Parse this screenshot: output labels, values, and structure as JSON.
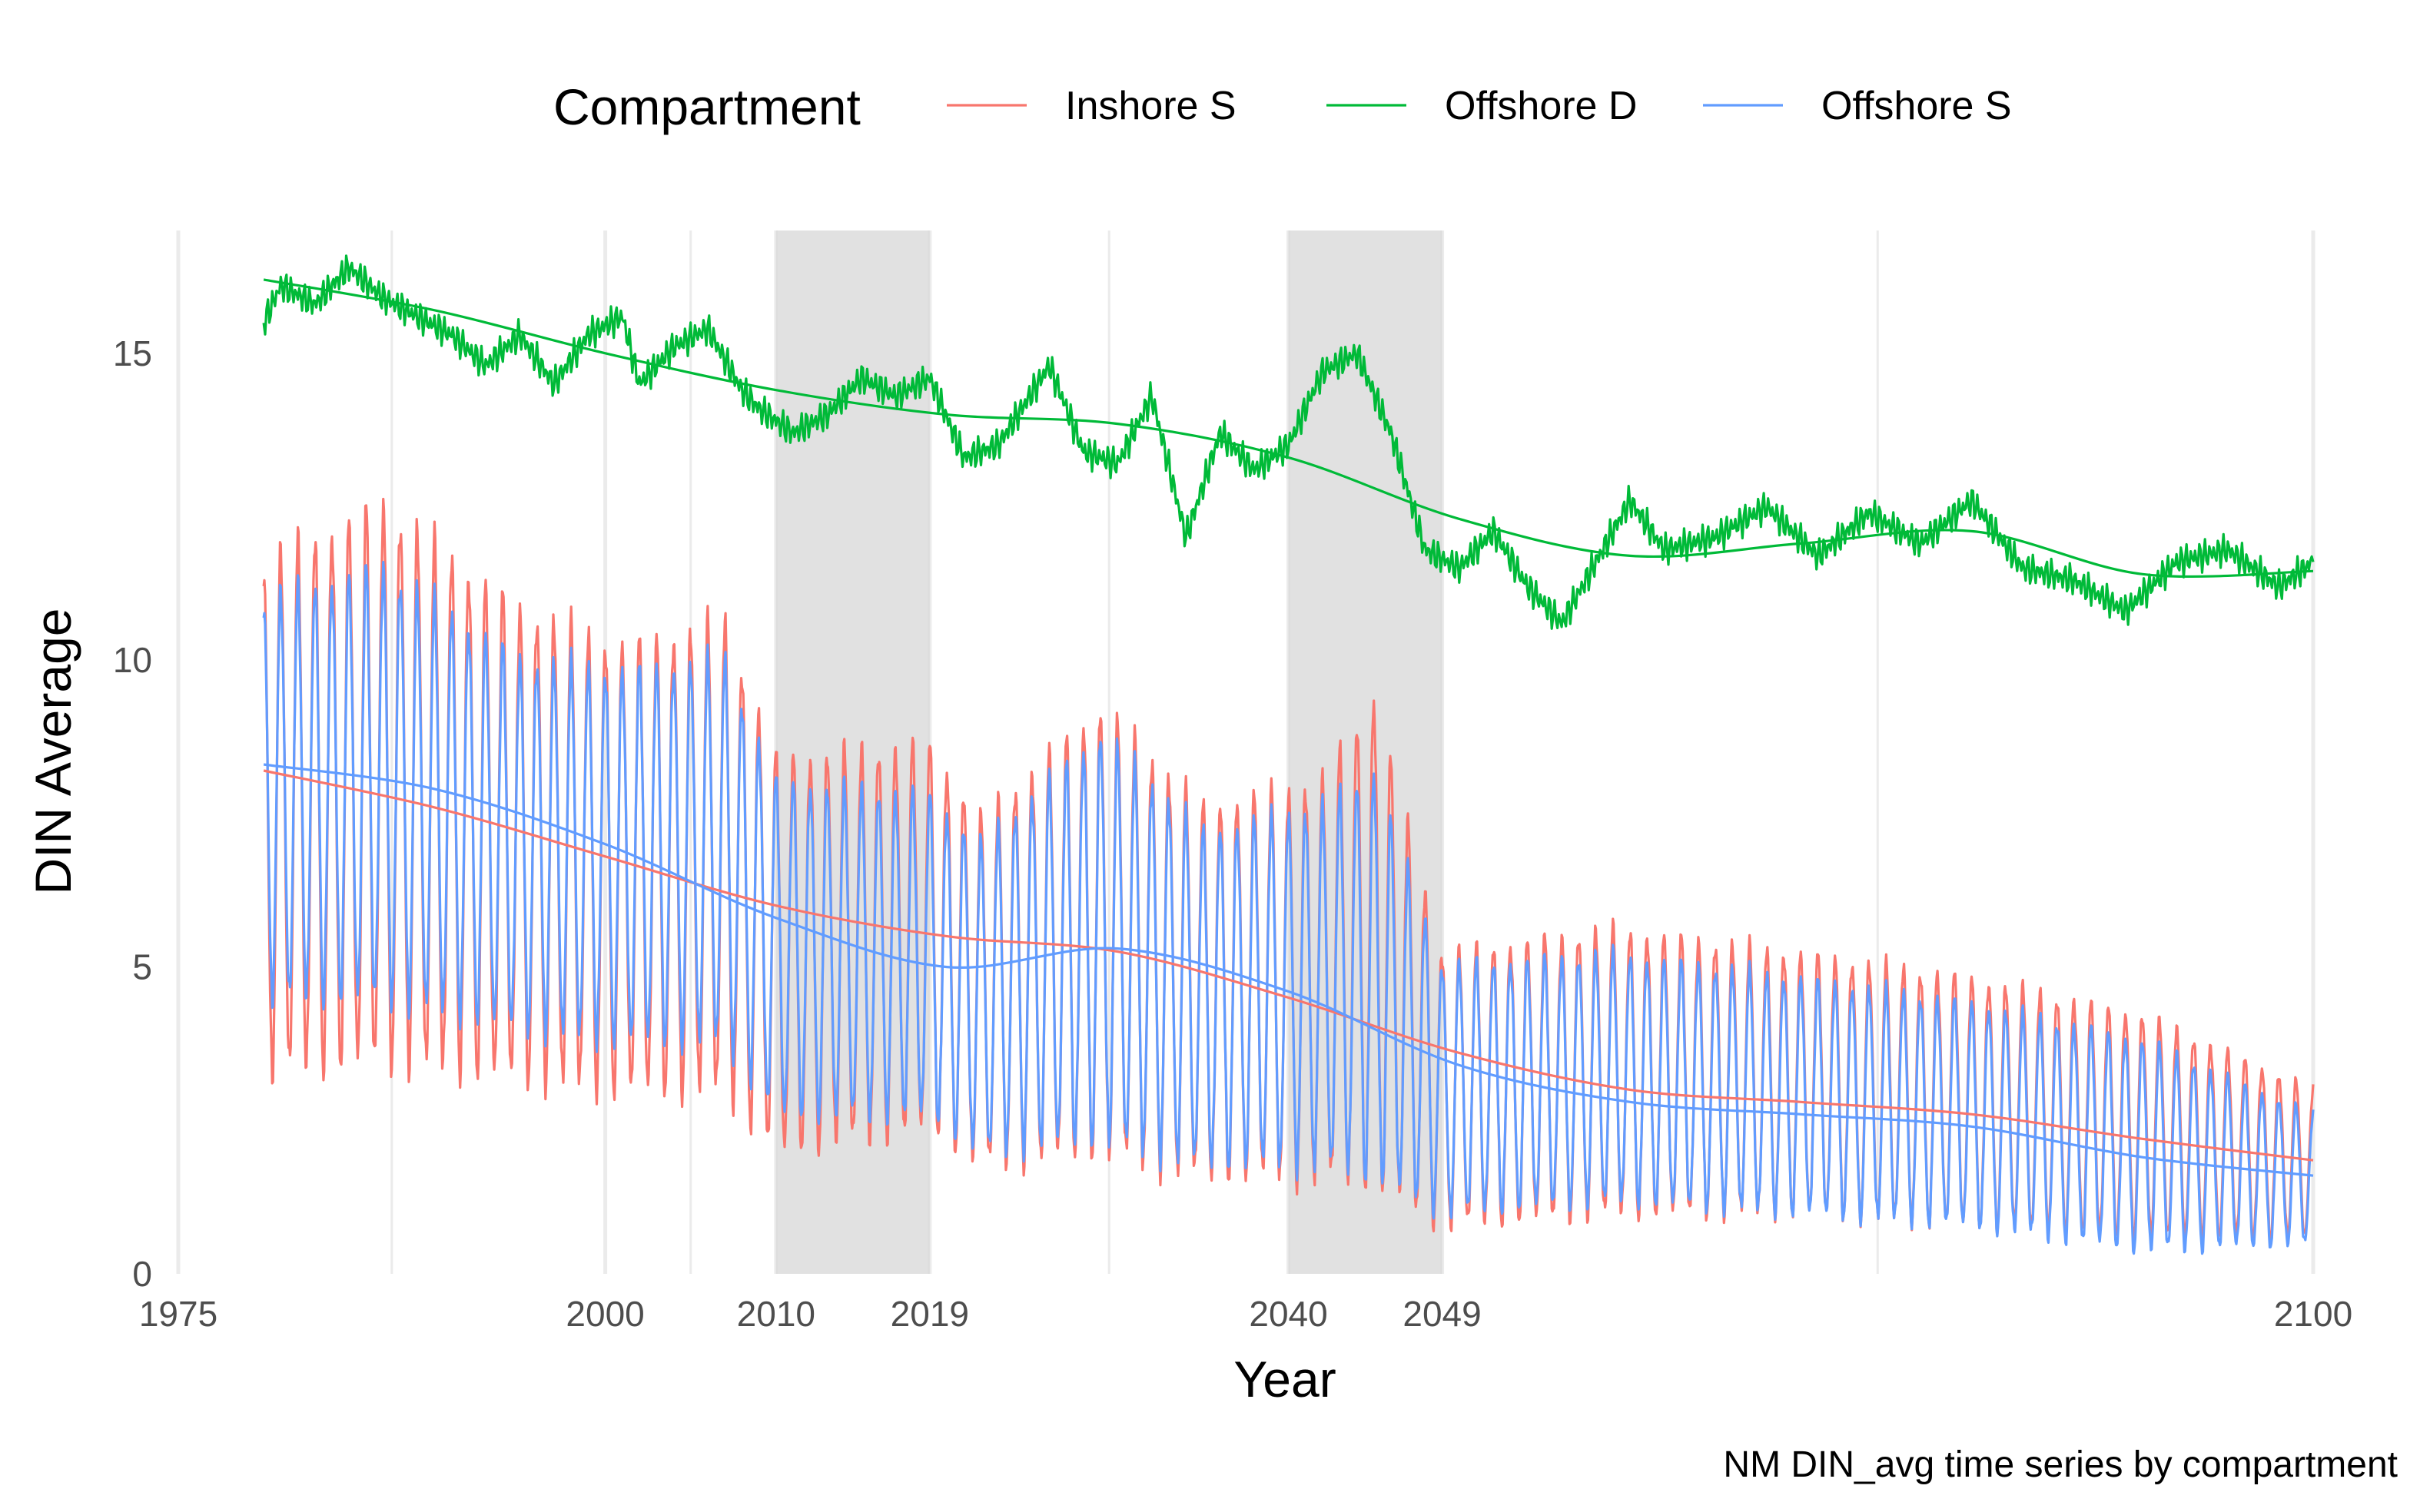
{
  "chart_data": {
    "type": "line",
    "title": "",
    "caption": "NM DIN_avg time series by compartment",
    "xlabel": "Year",
    "ylabel": "DIN Average",
    "xlim": [
      1975,
      2100
    ],
    "ylim": [
      0,
      17
    ],
    "x_ticks": [
      1975,
      2000,
      2010,
      2019,
      2040,
      2049,
      2100
    ],
    "y_ticks": [
      0,
      5,
      10,
      15
    ],
    "minor_gridlines_x": [
      1987.5,
      2005,
      2029.5,
      2074.5
    ],
    "shaded_periods": [
      [
        2010,
        2019
      ],
      [
        2040,
        2049
      ]
    ],
    "grid": true,
    "legend": {
      "title": "Compartment",
      "position": "top"
    },
    "series": [
      {
        "name": "Inshore S",
        "color": "#F8766D",
        "raw_seasonal_envelope": [
          {
            "year": 1980,
            "peak": 11.6,
            "trough": 3.3
          },
          {
            "year": 1987,
            "peak": 12.5,
            "trough": 3.5
          },
          {
            "year": 1995,
            "peak": 10.8,
            "trough": 3.2
          },
          {
            "year": 2001,
            "peak": 10.2,
            "trough": 3.0
          },
          {
            "year": 2007,
            "peak": 10.6,
            "trough": 3.0
          },
          {
            "year": 2010,
            "peak": 8.4,
            "trough": 2.0
          },
          {
            "year": 2019,
            "peak": 8.6,
            "trough": 2.4
          },
          {
            "year": 2022,
            "peak": 7.4,
            "trough": 1.8
          },
          {
            "year": 2029,
            "peak": 9.2,
            "trough": 2.0
          },
          {
            "year": 2035,
            "peak": 7.6,
            "trough": 1.6
          },
          {
            "year": 2042,
            "peak": 8.0,
            "trough": 1.6
          },
          {
            "year": 2045,
            "peak": 9.4,
            "trough": 1.5
          },
          {
            "year": 2049,
            "peak": 5.2,
            "trough": 0.8
          },
          {
            "year": 2059,
            "peak": 5.6,
            "trough": 1.0
          },
          {
            "year": 2070,
            "peak": 5.2,
            "trough": 1.0
          },
          {
            "year": 2080,
            "peak": 4.8,
            "trough": 0.8
          },
          {
            "year": 2090,
            "peak": 4.2,
            "trough": 0.6
          },
          {
            "year": 2100,
            "peak": 3.0,
            "trough": 0.6
          }
        ],
        "smooth": [
          {
            "x": 1980,
            "y": 8.2
          },
          {
            "x": 1990,
            "y": 7.6
          },
          {
            "x": 2000,
            "y": 6.8
          },
          {
            "x": 2010,
            "y": 6.0
          },
          {
            "x": 2020,
            "y": 5.5
          },
          {
            "x": 2030,
            "y": 5.25
          },
          {
            "x": 2040,
            "y": 4.5
          },
          {
            "x": 2050,
            "y": 3.6
          },
          {
            "x": 2060,
            "y": 3.0
          },
          {
            "x": 2070,
            "y": 2.8
          },
          {
            "x": 2080,
            "y": 2.6
          },
          {
            "x": 2090,
            "y": 2.2
          },
          {
            "x": 2100,
            "y": 1.85
          }
        ]
      },
      {
        "name": "Offshore D",
        "color": "#00BA38",
        "raw": [
          {
            "x": 1980,
            "y": 15.5
          },
          {
            "x": 1981,
            "y": 16.1
          },
          {
            "x": 1983,
            "y": 15.8
          },
          {
            "x": 1985,
            "y": 16.4
          },
          {
            "x": 1987,
            "y": 15.9
          },
          {
            "x": 1989,
            "y": 15.6
          },
          {
            "x": 1991,
            "y": 15.3
          },
          {
            "x": 1993,
            "y": 14.8
          },
          {
            "x": 1995,
            "y": 15.3
          },
          {
            "x": 1997,
            "y": 14.5
          },
          {
            "x": 1999,
            "y": 15.3
          },
          {
            "x": 2001,
            "y": 15.6
          },
          {
            "x": 2002,
            "y": 14.5
          },
          {
            "x": 2004,
            "y": 15.1
          },
          {
            "x": 2006,
            "y": 15.4
          },
          {
            "x": 2008,
            "y": 14.4
          },
          {
            "x": 2009,
            "y": 14.1
          },
          {
            "x": 2011,
            "y": 13.7
          },
          {
            "x": 2013,
            "y": 14.0
          },
          {
            "x": 2015,
            "y": 14.6
          },
          {
            "x": 2017,
            "y": 14.3
          },
          {
            "x": 2019,
            "y": 14.6
          },
          {
            "x": 2021,
            "y": 13.3
          },
          {
            "x": 2023,
            "y": 13.5
          },
          {
            "x": 2026,
            "y": 14.8
          },
          {
            "x": 2028,
            "y": 13.4
          },
          {
            "x": 2030,
            "y": 13.2
          },
          {
            "x": 2032,
            "y": 14.3
          },
          {
            "x": 2034,
            "y": 12.0
          },
          {
            "x": 2036,
            "y": 13.7
          },
          {
            "x": 2038,
            "y": 13.1
          },
          {
            "x": 2040,
            "y": 13.5
          },
          {
            "x": 2042,
            "y": 14.7
          },
          {
            "x": 2044,
            "y": 15.0
          },
          {
            "x": 2046,
            "y": 13.7
          },
          {
            "x": 2048,
            "y": 11.8
          },
          {
            "x": 2050,
            "y": 11.5
          },
          {
            "x": 2052,
            "y": 12.1
          },
          {
            "x": 2054,
            "y": 11.2
          },
          {
            "x": 2056,
            "y": 10.6
          },
          {
            "x": 2058,
            "y": 11.6
          },
          {
            "x": 2060,
            "y": 12.6
          },
          {
            "x": 2062,
            "y": 11.8
          },
          {
            "x": 2065,
            "y": 12.0
          },
          {
            "x": 2068,
            "y": 12.5
          },
          {
            "x": 2071,
            "y": 11.7
          },
          {
            "x": 2074,
            "y": 12.4
          },
          {
            "x": 2077,
            "y": 11.9
          },
          {
            "x": 2080,
            "y": 12.6
          },
          {
            "x": 2083,
            "y": 11.5
          },
          {
            "x": 2086,
            "y": 11.3
          },
          {
            "x": 2089,
            "y": 10.8
          },
          {
            "x": 2092,
            "y": 11.6
          },
          {
            "x": 2095,
            "y": 11.8
          },
          {
            "x": 2098,
            "y": 11.2
          },
          {
            "x": 2100,
            "y": 11.6
          }
        ],
        "smooth": [
          {
            "x": 1980,
            "y": 16.2
          },
          {
            "x": 1990,
            "y": 15.7
          },
          {
            "x": 2000,
            "y": 15.0
          },
          {
            "x": 2010,
            "y": 14.4
          },
          {
            "x": 2020,
            "y": 14.0
          },
          {
            "x": 2030,
            "y": 13.85
          },
          {
            "x": 2040,
            "y": 13.3
          },
          {
            "x": 2050,
            "y": 12.3
          },
          {
            "x": 2060,
            "y": 11.7
          },
          {
            "x": 2070,
            "y": 11.9
          },
          {
            "x": 2080,
            "y": 12.1
          },
          {
            "x": 2090,
            "y": 11.4
          },
          {
            "x": 2100,
            "y": 11.45
          }
        ]
      },
      {
        "name": "Offshore S",
        "color": "#619CFF",
        "raw_seasonal_envelope": [
          {
            "year": 1980,
            "peak": 11.0,
            "trough": 4.5
          },
          {
            "year": 1987,
            "peak": 11.5,
            "trough": 4.5
          },
          {
            "year": 1995,
            "peak": 10.0,
            "trough": 4.0
          },
          {
            "year": 2001,
            "peak": 9.8,
            "trough": 3.8
          },
          {
            "year": 2007,
            "peak": 10.0,
            "trough": 3.8
          },
          {
            "year": 2010,
            "peak": 8.0,
            "trough": 2.6
          },
          {
            "year": 2019,
            "peak": 7.8,
            "trough": 2.6
          },
          {
            "year": 2022,
            "peak": 7.0,
            "trough": 2.0
          },
          {
            "year": 2029,
            "peak": 8.8,
            "trough": 2.2
          },
          {
            "year": 2035,
            "peak": 7.2,
            "trough": 1.8
          },
          {
            "year": 2042,
            "peak": 7.6,
            "trough": 1.8
          },
          {
            "year": 2045,
            "peak": 8.2,
            "trough": 1.6
          },
          {
            "year": 2049,
            "peak": 5.0,
            "trough": 1.0
          },
          {
            "year": 2059,
            "peak": 5.2,
            "trough": 1.2
          },
          {
            "year": 2070,
            "peak": 4.8,
            "trough": 1.0
          },
          {
            "year": 2080,
            "peak": 4.4,
            "trough": 0.8
          },
          {
            "year": 2090,
            "peak": 3.8,
            "trough": 0.4
          },
          {
            "year": 2100,
            "peak": 2.6,
            "trough": 0.5
          }
        ],
        "smooth": [
          {
            "x": 1980,
            "y": 8.3
          },
          {
            "x": 1990,
            "y": 7.9
          },
          {
            "x": 2000,
            "y": 7.0
          },
          {
            "x": 2010,
            "y": 5.8
          },
          {
            "x": 2020,
            "y": 5.0
          },
          {
            "x": 2030,
            "y": 5.3
          },
          {
            "x": 2040,
            "y": 4.6
          },
          {
            "x": 2050,
            "y": 3.4
          },
          {
            "x": 2060,
            "y": 2.8
          },
          {
            "x": 2070,
            "y": 2.6
          },
          {
            "x": 2080,
            "y": 2.4
          },
          {
            "x": 2090,
            "y": 1.9
          },
          {
            "x": 2100,
            "y": 1.6
          }
        ]
      }
    ]
  }
}
